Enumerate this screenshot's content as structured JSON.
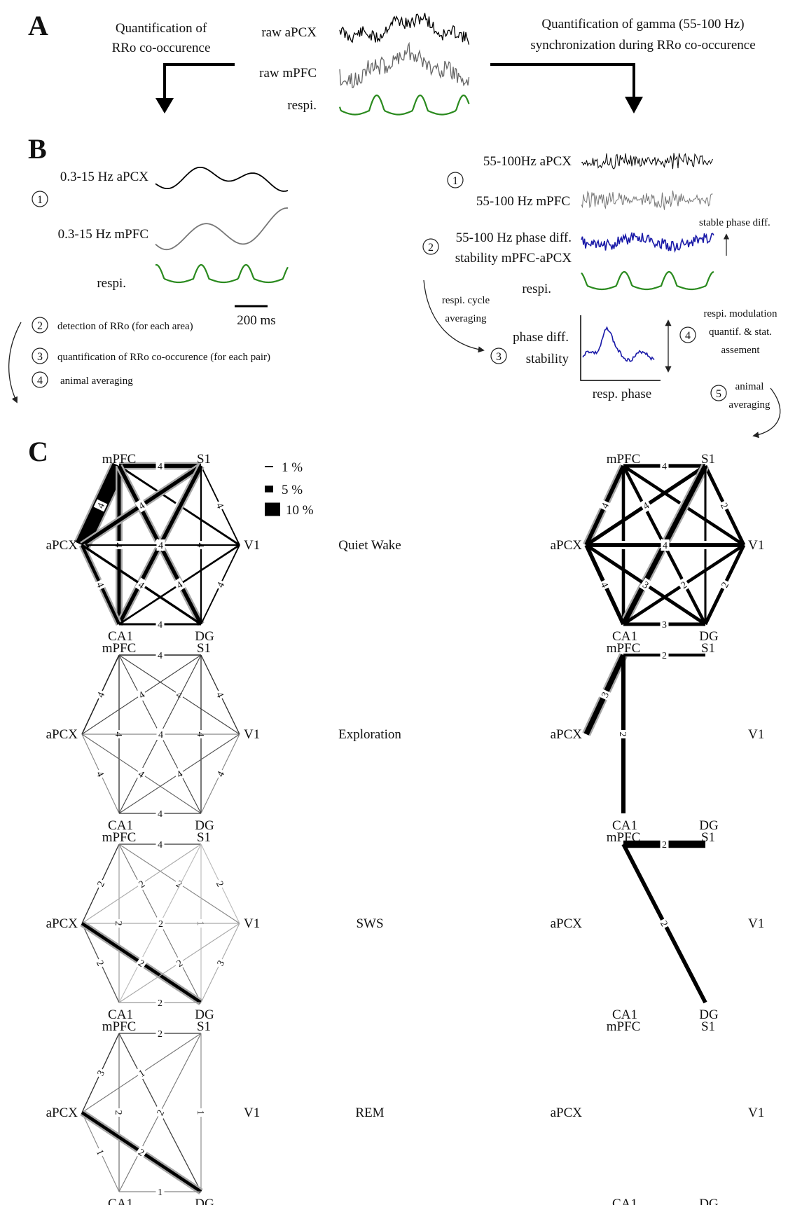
{
  "panels": {
    "a": "A",
    "b": "B",
    "c": "C"
  },
  "panel_a": {
    "left_title": [
      "Quantification of",
      "RRo co-occurence"
    ],
    "right_title": [
      "Quantification of gamma (55-100 Hz)",
      "synchronization during RRo co-occurence"
    ],
    "trace_labels": [
      "raw aPCX",
      "raw mPFC",
      "respi."
    ]
  },
  "panel_b_left": {
    "trace_labels": [
      "0.3-15 Hz aPCX",
      "0.3-15 Hz mPFC",
      "respi."
    ],
    "scale_bar": "200 ms",
    "steps": [
      {
        "num": "1",
        "text": ""
      },
      {
        "num": "2",
        "text": "detection of RRo (for each area)"
      },
      {
        "num": "3",
        "text": "quantification of RRo co-occurence (for each pair)"
      },
      {
        "num": "4",
        "text": "animal averaging"
      }
    ]
  },
  "panel_b_right": {
    "trace_labels": [
      "55-100Hz aPCX",
      "55-100 Hz mPFC",
      "55-100 Hz phase diff.",
      "stability mPFC-aPCX",
      "respi."
    ],
    "stable_note": "stable phase diff.",
    "averaging_note": [
      "respi. cycle",
      "averaging"
    ],
    "phase_label": [
      "phase diff.",
      "stability"
    ],
    "x_axis": "resp. phase",
    "modulation_note": [
      "respi. modulation",
      "quantif. & stat.",
      "assement"
    ],
    "animal_note": [
      "animal",
      "averaging"
    ],
    "step_nums": [
      "1",
      "2",
      "3",
      "4",
      "5"
    ]
  },
  "legend": [
    {
      "label": "1 %",
      "pct": 1
    },
    {
      "label": "5 %",
      "pct": 5
    },
    {
      "label": "10 %",
      "pct": 10
    }
  ],
  "nodes": [
    "mPFC",
    "S1",
    "aPCX",
    "V1",
    "CA1",
    "DG"
  ],
  "colors": {
    "respiration": "#2a8a1e",
    "phase_diff": "#1a1aa8",
    "halo": "#a8a8a8"
  },
  "states": [
    {
      "name": "Quiet Wake",
      "left_edges": [
        {
          "a": "mPFC",
          "b": "S1",
          "label": "4",
          "pct": 3.0,
          "gray": "#000",
          "halo": true
        },
        {
          "a": "mPFC",
          "b": "aPCX",
          "label": "4",
          "pct": 10.5,
          "gray": "#000",
          "halo": true
        },
        {
          "a": "mPFC",
          "b": "V1",
          "label": "4",
          "pct": 1.5,
          "gray": "#000",
          "halo": false
        },
        {
          "a": "mPFC",
          "b": "CA1",
          "label": "4",
          "pct": 2.6,
          "gray": "#000",
          "halo": true
        },
        {
          "a": "mPFC",
          "b": "DG",
          "label": "4",
          "pct": 2.8,
          "gray": "#000",
          "halo": true
        },
        {
          "a": "S1",
          "b": "aPCX",
          "label": "4",
          "pct": 2.8,
          "gray": "#000",
          "halo": true
        },
        {
          "a": "S1",
          "b": "V1",
          "label": "4",
          "pct": 1.0,
          "gray": "#000",
          "halo": false
        },
        {
          "a": "S1",
          "b": "CA1",
          "label": "4",
          "pct": 2.8,
          "gray": "#000",
          "halo": true
        },
        {
          "a": "S1",
          "b": "DG",
          "label": "4",
          "pct": 1.2,
          "gray": "#000",
          "halo": false
        },
        {
          "a": "aPCX",
          "b": "V1",
          "label": "4",
          "pct": 1.2,
          "gray": "#000",
          "halo": false
        },
        {
          "a": "aPCX",
          "b": "CA1",
          "label": "4",
          "pct": 2.3,
          "gray": "#000",
          "halo": true
        },
        {
          "a": "aPCX",
          "b": "DG",
          "label": "4",
          "pct": 1.8,
          "gray": "#000",
          "halo": false
        },
        {
          "a": "V1",
          "b": "CA1",
          "label": "4",
          "pct": 1.4,
          "gray": "#000",
          "halo": false
        },
        {
          "a": "V1",
          "b": "DG",
          "label": "4",
          "pct": 1.0,
          "gray": "#000",
          "halo": false
        },
        {
          "a": "CA1",
          "b": "DG",
          "label": "4",
          "pct": 1.6,
          "gray": "#000",
          "halo": false
        }
      ],
      "right_edges": [
        {
          "a": "mPFC",
          "b": "S1",
          "label": "4",
          "pct": 2.8,
          "gray": "#000",
          "halo": false
        },
        {
          "a": "mPFC",
          "b": "aPCX",
          "label": "4",
          "pct": 3.0,
          "gray": "#000",
          "halo": true
        },
        {
          "a": "mPFC",
          "b": "V1",
          "label": "4",
          "pct": 2.4,
          "gray": "#000",
          "halo": false
        },
        {
          "a": "mPFC",
          "b": "CA1",
          "label": "3",
          "pct": 2.4,
          "gray": "#000",
          "halo": false
        },
        {
          "a": "mPFC",
          "b": "DG",
          "label": "3",
          "pct": 2.4,
          "gray": "#000",
          "halo": false
        },
        {
          "a": "S1",
          "b": "aPCX",
          "label": "4",
          "pct": 2.8,
          "gray": "#000",
          "halo": false
        },
        {
          "a": "S1",
          "b": "V1",
          "label": "2",
          "pct": 2.6,
          "gray": "#000",
          "halo": false
        },
        {
          "a": "S1",
          "b": "CA1",
          "label": "4",
          "pct": 3.8,
          "gray": "#000",
          "halo": true
        },
        {
          "a": "S1",
          "b": "DG",
          "label": "2",
          "pct": 1.6,
          "gray": "#000",
          "halo": false
        },
        {
          "a": "aPCX",
          "b": "V1",
          "label": "4",
          "pct": 3.0,
          "gray": "#000",
          "halo": false
        },
        {
          "a": "aPCX",
          "b": "CA1",
          "label": "4",
          "pct": 3.0,
          "gray": "#000",
          "halo": false
        },
        {
          "a": "aPCX",
          "b": "DG",
          "label": "3",
          "pct": 2.6,
          "gray": "#000",
          "halo": false
        },
        {
          "a": "V1",
          "b": "CA1",
          "label": "2",
          "pct": 2.4,
          "gray": "#000",
          "halo": false
        },
        {
          "a": "V1",
          "b": "DG",
          "label": "2",
          "pct": 2.6,
          "gray": "#000",
          "halo": false
        },
        {
          "a": "CA1",
          "b": "DG",
          "label": "3",
          "pct": 2.6,
          "gray": "#000",
          "halo": false
        }
      ]
    },
    {
      "name": "Exploration",
      "left_edges": [
        {
          "a": "mPFC",
          "b": "S1",
          "label": "4",
          "pct": 0.8,
          "gray": "#222",
          "halo": false
        },
        {
          "a": "mPFC",
          "b": "aPCX",
          "label": "4",
          "pct": 0.8,
          "gray": "#222",
          "halo": false
        },
        {
          "a": "mPFC",
          "b": "V1",
          "label": "4",
          "pct": 0.6,
          "gray": "#444",
          "halo": false
        },
        {
          "a": "mPFC",
          "b": "CA1",
          "label": "4",
          "pct": 0.7,
          "gray": "#333",
          "halo": false
        },
        {
          "a": "mPFC",
          "b": "DG",
          "label": "4",
          "pct": 0.6,
          "gray": "#444",
          "halo": false
        },
        {
          "a": "S1",
          "b": "aPCX",
          "label": "4",
          "pct": 0.6,
          "gray": "#444",
          "halo": false
        },
        {
          "a": "S1",
          "b": "V1",
          "label": "4",
          "pct": 0.7,
          "gray": "#333",
          "halo": false
        },
        {
          "a": "S1",
          "b": "CA1",
          "label": "4",
          "pct": 0.6,
          "gray": "#444",
          "halo": false
        },
        {
          "a": "S1",
          "b": "DG",
          "label": "4",
          "pct": 0.7,
          "gray": "#333",
          "halo": false
        },
        {
          "a": "aPCX",
          "b": "V1",
          "label": "4",
          "pct": 0.6,
          "gray": "#888",
          "halo": false
        },
        {
          "a": "aPCX",
          "b": "CA1",
          "label": "4",
          "pct": 0.6,
          "gray": "#888",
          "halo": false
        },
        {
          "a": "aPCX",
          "b": "DG",
          "label": "4",
          "pct": 0.6,
          "gray": "#666",
          "halo": false
        },
        {
          "a": "V1",
          "b": "CA1",
          "label": "4",
          "pct": 0.6,
          "gray": "#555",
          "halo": false
        },
        {
          "a": "V1",
          "b": "DG",
          "label": "4",
          "pct": 0.6,
          "gray": "#888",
          "halo": false
        },
        {
          "a": "CA1",
          "b": "DG",
          "label": "4",
          "pct": 0.7,
          "gray": "#333",
          "halo": false
        }
      ],
      "right_edges": [
        {
          "a": "mPFC",
          "b": "S1",
          "label": "2",
          "pct": 2.2,
          "gray": "#000",
          "halo": false
        },
        {
          "a": "mPFC",
          "b": "aPCX",
          "label": "3",
          "pct": 4.0,
          "gray": "#000",
          "halo": true
        },
        {
          "a": "mPFC",
          "b": "CA1",
          "label": "2",
          "pct": 3.2,
          "gray": "#000",
          "halo": false
        }
      ]
    },
    {
      "name": "SWS",
      "left_edges": [
        {
          "a": "mPFC",
          "b": "S1",
          "label": "4",
          "pct": 0.7,
          "gray": "#333",
          "halo": false
        },
        {
          "a": "mPFC",
          "b": "aPCX",
          "label": "2",
          "pct": 0.7,
          "gray": "#333",
          "halo": false
        },
        {
          "a": "mPFC",
          "b": "V1",
          "label": "2",
          "pct": 0.6,
          "gray": "#888",
          "halo": false
        },
        {
          "a": "mPFC",
          "b": "CA1",
          "label": "2",
          "pct": 0.6,
          "gray": "#999",
          "halo": false
        },
        {
          "a": "mPFC",
          "b": "DG",
          "label": "3",
          "pct": 0.6,
          "gray": "#777",
          "halo": false
        },
        {
          "a": "S1",
          "b": "aPCX",
          "label": "2",
          "pct": 0.6,
          "gray": "#aaa",
          "halo": false
        },
        {
          "a": "S1",
          "b": "V1",
          "label": "2",
          "pct": 0.6,
          "gray": "#bbb",
          "halo": false
        },
        {
          "a": "S1",
          "b": "CA1",
          "label": "2",
          "pct": 0.6,
          "gray": "#bbb",
          "halo": false
        },
        {
          "a": "S1",
          "b": "DG",
          "label": "1",
          "pct": 0.6,
          "gray": "#bbb",
          "halo": false
        },
        {
          "a": "aPCX",
          "b": "V1",
          "label": "2",
          "pct": 0.6,
          "gray": "#aaa",
          "halo": false
        },
        {
          "a": "aPCX",
          "b": "CA1",
          "label": "2",
          "pct": 0.7,
          "gray": "#555",
          "halo": false
        },
        {
          "a": "aPCX",
          "b": "DG",
          "label": "2",
          "pct": 2.4,
          "gray": "#000",
          "halo": true
        },
        {
          "a": "V1",
          "b": "CA1",
          "label": "2",
          "pct": 0.6,
          "gray": "#aaa",
          "halo": false
        },
        {
          "a": "V1",
          "b": "DG",
          "label": "3",
          "pct": 0.6,
          "gray": "#aaa",
          "halo": false
        },
        {
          "a": "CA1",
          "b": "DG",
          "label": "2",
          "pct": 0.6,
          "gray": "#999",
          "halo": false
        }
      ],
      "right_edges": [
        {
          "a": "mPFC",
          "b": "S1",
          "label": "2",
          "pct": 5.5,
          "gray": "#000",
          "halo": false
        },
        {
          "a": "mPFC",
          "b": "DG",
          "label": "2",
          "pct": 3.0,
          "gray": "#000",
          "halo": false
        }
      ]
    },
    {
      "name": "REM",
      "left_edges": [
        {
          "a": "mPFC",
          "b": "S1",
          "label": "2",
          "pct": 0.7,
          "gray": "#333",
          "halo": false
        },
        {
          "a": "mPFC",
          "b": "aPCX",
          "label": "3",
          "pct": 0.7,
          "gray": "#333",
          "halo": false
        },
        {
          "a": "mPFC",
          "b": "CA1",
          "label": "2",
          "pct": 0.6,
          "gray": "#666",
          "halo": false
        },
        {
          "a": "mPFC",
          "b": "DG",
          "label": "2",
          "pct": 0.7,
          "gray": "#444",
          "halo": false
        },
        {
          "a": "S1",
          "b": "aPCX",
          "label": "1",
          "pct": 0.6,
          "gray": "#777",
          "halo": false
        },
        {
          "a": "S1",
          "b": "CA1",
          "label": "2",
          "pct": 0.6,
          "gray": "#777",
          "halo": false
        },
        {
          "a": "S1",
          "b": "DG",
          "label": "1",
          "pct": 0.6,
          "gray": "#888",
          "halo": false
        },
        {
          "a": "aPCX",
          "b": "CA1",
          "label": "1",
          "pct": 0.6,
          "gray": "#888",
          "halo": false
        },
        {
          "a": "aPCX",
          "b": "DG",
          "label": "2",
          "pct": 2.4,
          "gray": "#000",
          "halo": true
        },
        {
          "a": "CA1",
          "b": "DG",
          "label": "1",
          "pct": 0.6,
          "gray": "#888",
          "halo": false
        }
      ],
      "right_edges": []
    }
  ]
}
